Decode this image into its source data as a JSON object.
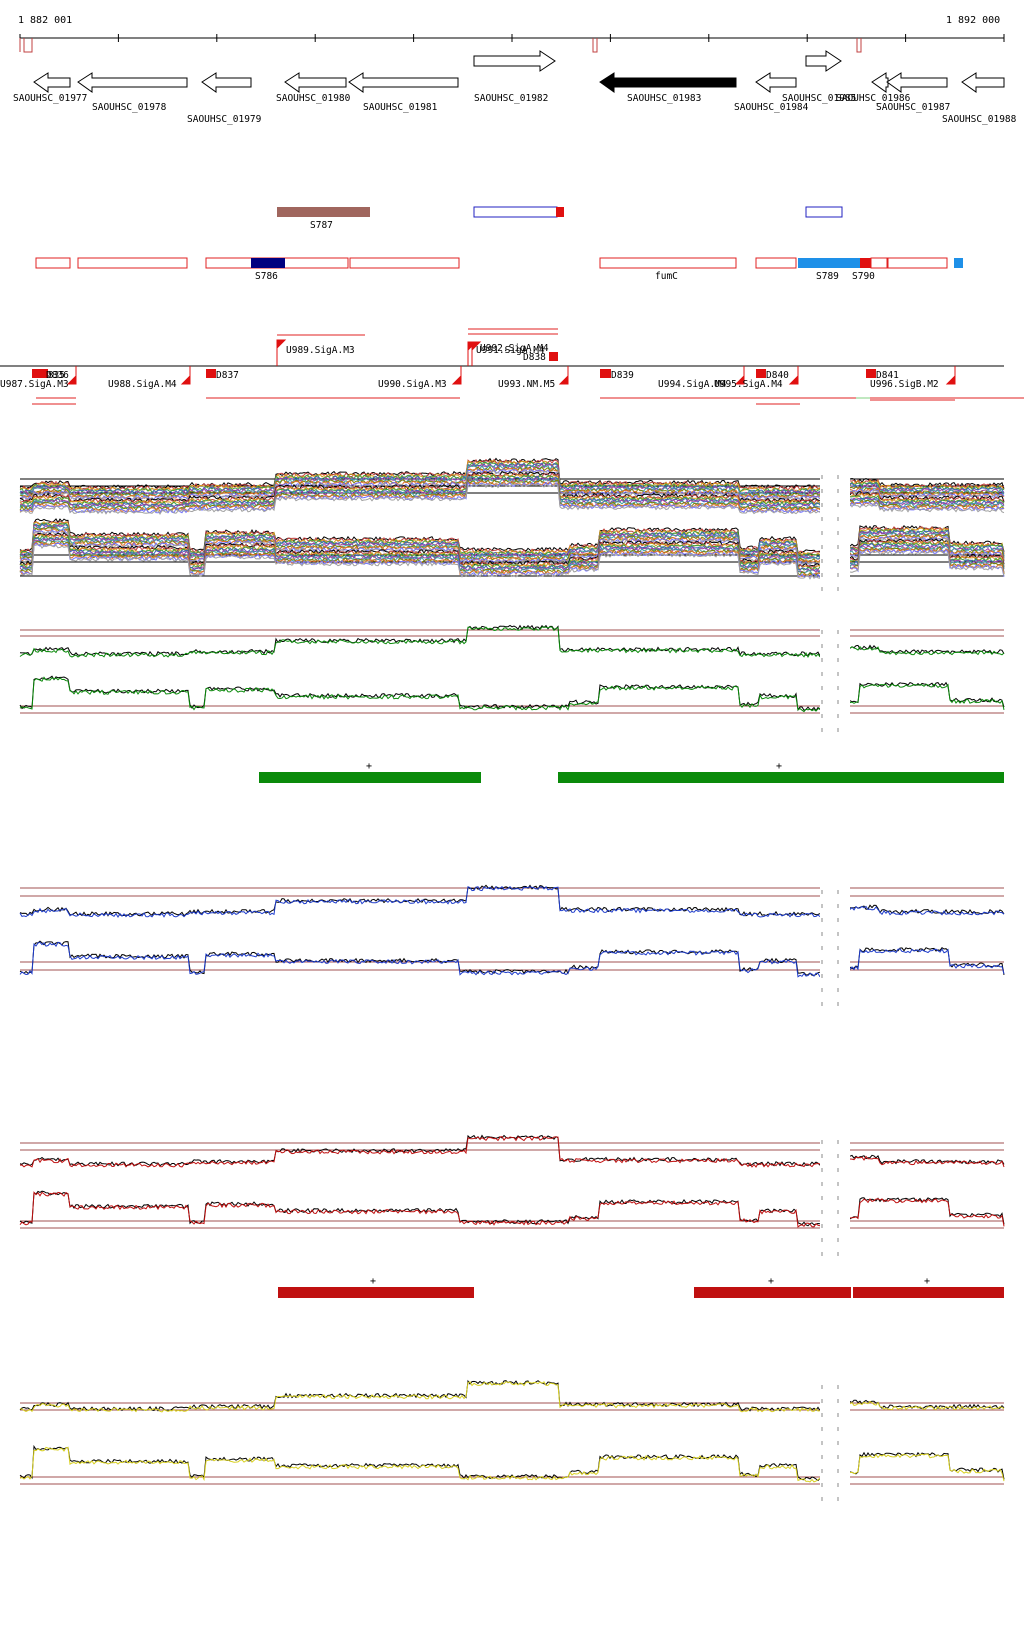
{
  "ruler": {
    "start_label": "1 882 001",
    "end_label": "1 892 000",
    "start_bp": 1882001,
    "end_bp": 1892000
  },
  "colors": {
    "forward_gene": "#ffffff",
    "highlight_gene": "#000000",
    "sig_brown": "#a0665e",
    "sig_red": "#e02020",
    "sig_navy": "#000080",
    "sig_cyan": "#1e90e8",
    "green_track": "#0a8a0a",
    "blue_track": "#1e3ccc",
    "red_track": "#c01010",
    "yellow_track": "#d8d020",
    "threshold": "#a05050"
  },
  "genes": [
    {
      "name": "SAOUHSC_01977",
      "strand": "-",
      "fill": "none",
      "row": 0
    },
    {
      "name": "SAOUHSC_01978",
      "strand": "-",
      "fill": "none",
      "row": 1
    },
    {
      "name": "SAOUHSC_01979",
      "strand": "-",
      "fill": "none",
      "row": 2
    },
    {
      "name": "SAOUHSC_01980",
      "strand": "-",
      "fill": "none",
      "row": 0
    },
    {
      "name": "SAOUHSC_01981",
      "strand": "-",
      "fill": "none",
      "row": 1
    },
    {
      "name": "SAOUHSC_01982",
      "strand": "+",
      "fill": "none",
      "row": 0
    },
    {
      "name": "SAOUHSC_01983",
      "strand": "-",
      "fill": "black",
      "row": 0
    },
    {
      "name": "SAOUHSC_01984",
      "strand": "-",
      "fill": "none",
      "row": 1
    },
    {
      "name": "SAOUHSC_01985",
      "strand": "+",
      "fill": "none",
      "row": 0
    },
    {
      "name": "SAOUHSC_01986",
      "strand": "-",
      "fill": "none",
      "row": 0
    },
    {
      "name": "SAOUHSC_01987",
      "strand": "-",
      "fill": "none",
      "row": 1
    },
    {
      "name": "SAOUHSC_01988",
      "strand": "-",
      "fill": "none",
      "row": 2
    }
  ],
  "features": [
    {
      "name": "S787",
      "kind": "brown"
    },
    {
      "name": "S786",
      "kind": "navy"
    },
    {
      "name": "fumC",
      "kind": "red-outline"
    },
    {
      "name": "S789",
      "kind": "cyan"
    },
    {
      "name": "S790",
      "kind": "red"
    }
  ],
  "upshift_labels": [
    "U987.SigA.M3",
    "U988.SigA.M4",
    "U989.SigA.M3",
    "U990.SigA.M3",
    "U991.SigA.M4",
    "U992.SigA.M4",
    "U993.NM.M5",
    "U994.SigA.M4",
    "U995.SigA.M4",
    "U996.SigB.M2"
  ],
  "downshift_labels": [
    "D835",
    "D836",
    "D837",
    "D838",
    "D839",
    "D840",
    "D841"
  ],
  "track_groups": [
    {
      "name": "all-conditions",
      "plus_labels": []
    },
    {
      "name": "green",
      "plus_labels": [
        "+",
        "+"
      ]
    },
    {
      "name": "blue",
      "plus_labels": []
    },
    {
      "name": "red",
      "plus_labels": [
        "+",
        "+",
        "+"
      ]
    },
    {
      "name": "yellow",
      "plus_labels": []
    }
  ]
}
